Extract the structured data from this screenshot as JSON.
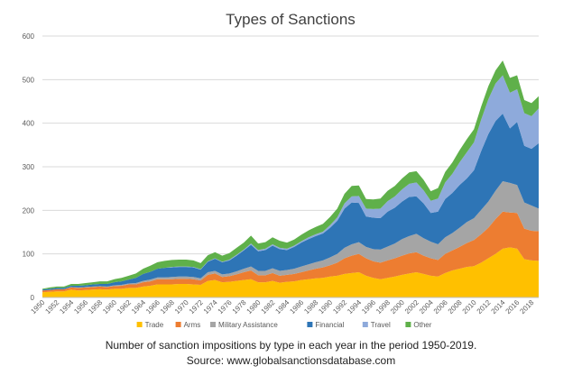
{
  "chart_data": {
    "type": "area",
    "stacked": true,
    "title": "Types of Sanctions",
    "xlabel": "",
    "ylabel": "",
    "ylim": [
      0,
      600
    ],
    "yticks": [
      0,
      100,
      200,
      300,
      400,
      500,
      600
    ],
    "grid": true,
    "legend_position": "bottom",
    "x": [
      1950,
      1951,
      1952,
      1953,
      1954,
      1955,
      1956,
      1957,
      1958,
      1959,
      1960,
      1961,
      1962,
      1963,
      1964,
      1965,
      1966,
      1967,
      1968,
      1969,
      1970,
      1971,
      1972,
      1973,
      1974,
      1975,
      1976,
      1977,
      1978,
      1979,
      1980,
      1981,
      1982,
      1983,
      1984,
      1985,
      1986,
      1987,
      1988,
      1989,
      1990,
      1991,
      1992,
      1993,
      1994,
      1995,
      1996,
      1997,
      1998,
      1999,
      2000,
      2001,
      2002,
      2003,
      2004,
      2005,
      2006,
      2007,
      2008,
      2009,
      2010,
      2011,
      2012,
      2013,
      2014,
      2015,
      2016,
      2017,
      2018,
      2019
    ],
    "xtick_labels": [
      "1950",
      "1952",
      "1954",
      "1956",
      "1958",
      "1960",
      "1962",
      "1964",
      "1966",
      "1968",
      "1970",
      "1972",
      "1974",
      "1976",
      "1978",
      "1980",
      "1982",
      "1984",
      "1986",
      "1988",
      "1990",
      "1992",
      "1994",
      "1996",
      "1998",
      "2000",
      "2002",
      "2004",
      "2006",
      "2008",
      "2010",
      "2012",
      "2014",
      "2016",
      "2018"
    ],
    "series": [
      {
        "name": "Trade",
        "color": "#FFC000",
        "values": [
          12,
          13,
          14,
          14,
          18,
          16,
          17,
          18,
          19,
          18,
          20,
          20,
          22,
          22,
          25,
          27,
          30,
          30,
          30,
          31,
          31,
          30,
          29,
          38,
          40,
          35,
          36,
          38,
          40,
          42,
          35,
          35,
          38,
          34,
          36,
          37,
          40,
          42,
          44,
          45,
          48,
          50,
          54,
          56,
          58,
          50,
          45,
          42,
          45,
          48,
          52,
          55,
          58,
          54,
          50,
          48,
          56,
          62,
          66,
          70,
          72,
          80,
          90,
          100,
          112,
          115,
          112,
          88,
          85,
          84
        ]
      },
      {
        "name": "Arms",
        "color": "#ED7D31",
        "values": [
          4,
          4,
          5,
          5,
          5,
          6,
          6,
          6,
          6,
          6,
          6,
          7,
          8,
          8,
          10,
          10,
          12,
          12,
          12,
          12,
          12,
          12,
          10,
          14,
          15,
          12,
          13,
          15,
          18,
          20,
          16,
          16,
          18,
          16,
          16,
          17,
          18,
          20,
          22,
          24,
          26,
          30,
          36,
          40,
          42,
          40,
          38,
          38,
          40,
          42,
          44,
          46,
          46,
          42,
          40,
          38,
          44,
          46,
          50,
          55,
          60,
          65,
          70,
          80,
          85,
          80,
          82,
          70,
          68,
          68
        ]
      },
      {
        "name": "Military Assistance",
        "color": "#A5A5A5",
        "values": [
          0,
          0,
          0,
          0,
          1,
          1,
          1,
          1,
          1,
          1,
          2,
          2,
          2,
          3,
          3,
          4,
          4,
          4,
          5,
          5,
          5,
          5,
          5,
          6,
          6,
          6,
          6,
          7,
          8,
          9,
          10,
          10,
          11,
          11,
          11,
          12,
          13,
          14,
          15,
          16,
          18,
          20,
          24,
          26,
          27,
          26,
          28,
          30,
          32,
          34,
          38,
          40,
          42,
          40,
          38,
          36,
          38,
          40,
          44,
          48,
          50,
          56,
          60,
          65,
          70,
          68,
          64,
          60,
          58,
          52
        ]
      },
      {
        "name": "Financial",
        "color": "#2E75B6",
        "values": [
          2,
          3,
          3,
          3,
          3,
          4,
          4,
          5,
          5,
          6,
          7,
          8,
          9,
          12,
          16,
          18,
          20,
          22,
          22,
          22,
          22,
          22,
          20,
          24,
          28,
          28,
          30,
          36,
          42,
          50,
          45,
          48,
          52,
          50,
          46,
          50,
          55,
          58,
          60,
          62,
          68,
          76,
          90,
          96,
          90,
          70,
          72,
          72,
          80,
          82,
          86,
          90,
          86,
          80,
          66,
          75,
          88,
          92,
          98,
          100,
          110,
          135,
          155,
          160,
          155,
          125,
          145,
          130,
          130,
          150
        ]
      },
      {
        "name": "Travel",
        "color": "#8EAADB",
        "values": [
          0,
          0,
          0,
          0,
          0,
          0,
          0,
          0,
          0,
          0,
          0,
          0,
          0,
          0,
          0,
          0,
          0,
          0,
          1,
          1,
          1,
          1,
          1,
          1,
          1,
          1,
          2,
          2,
          2,
          3,
          3,
          3,
          3,
          3,
          3,
          3,
          3,
          4,
          4,
          4,
          6,
          8,
          12,
          14,
          16,
          18,
          20,
          22,
          24,
          26,
          28,
          30,
          32,
          30,
          28,
          30,
          38,
          44,
          52,
          60,
          64,
          72,
          80,
          86,
          88,
          82,
          75,
          75,
          75,
          80
        ]
      },
      {
        "name": "Other",
        "color": "#5FB04A",
        "values": [
          2,
          3,
          3,
          3,
          4,
          4,
          5,
          5,
          6,
          6,
          7,
          8,
          9,
          10,
          12,
          14,
          15,
          16,
          16,
          16,
          16,
          15,
          14,
          14,
          14,
          14,
          15,
          16,
          16,
          18,
          15,
          15,
          16,
          16,
          14,
          14,
          15,
          16,
          17,
          18,
          19,
          20,
          22,
          24,
          24,
          22,
          22,
          23,
          24,
          24,
          25,
          26,
          26,
          24,
          22,
          24,
          24,
          26,
          28,
          30,
          30,
          30,
          30,
          30,
          34,
          34,
          32,
          30,
          30,
          28
        ]
      }
    ]
  },
  "caption": {
    "line1": "Number of sanction impositions by type in each year in the period 1950-2019.",
    "line2": "Source: www.globalsanctionsdatabase.com"
  }
}
